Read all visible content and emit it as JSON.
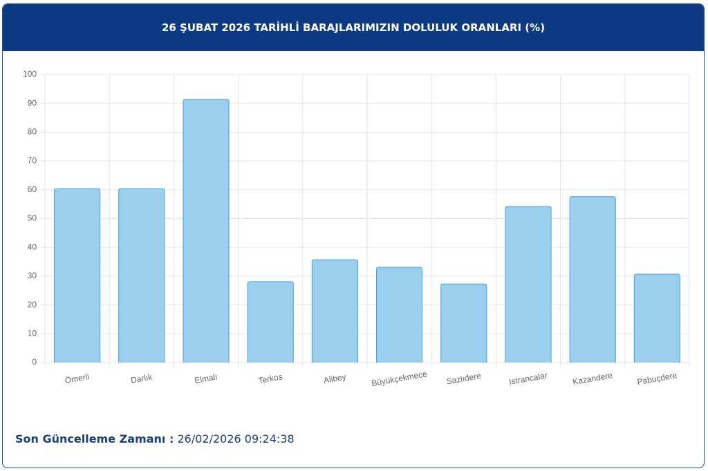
{
  "header": {
    "title": "26 ŞUBAT 2026 TARİHLİ BARAJLARIMIZIN DOLULUK ORANLARI (%)"
  },
  "chart_data": {
    "type": "bar",
    "categories": [
      "Ömerli",
      "Darlık",
      "Elmalı",
      "Terkos",
      "Alibey",
      "Büyükçekmece",
      "Sazlıdere",
      "Istrancalar",
      "Kazandere",
      "Pabuçdere"
    ],
    "values": [
      60.4,
      60.4,
      91.4,
      28.1,
      35.7,
      33.1,
      27.3,
      54.2,
      57.6,
      30.7
    ],
    "color": "#9ccfee",
    "ylim": [
      0,
      100
    ],
    "yticks": [
      0,
      10,
      20,
      30,
      40,
      50,
      60,
      70,
      80,
      90,
      100
    ],
    "grid": true
  },
  "footer": {
    "label": "Son Güncelleme Zamanı :",
    "timestamp": "26/02/2026 09:24:38"
  }
}
